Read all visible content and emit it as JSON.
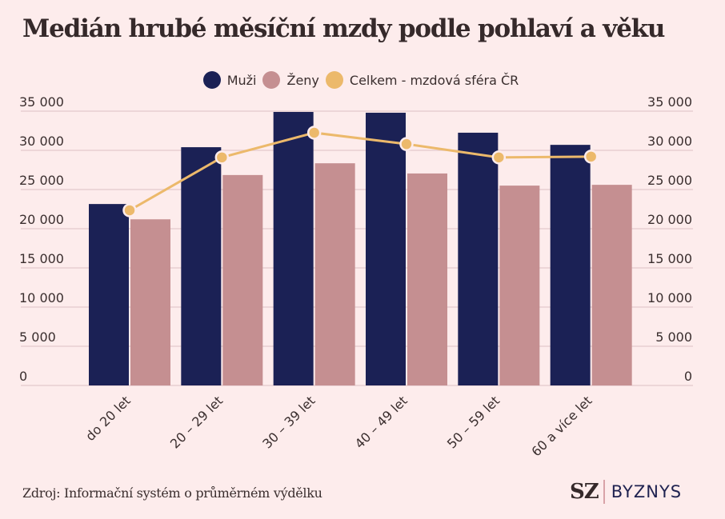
{
  "chart_data": {
    "type": "bar",
    "title": "Medián hrubé měsíční mzdy podle pohlaví a věku",
    "categories": [
      "do 20 let",
      "20 – 29 let",
      "30 – 39 let",
      "40 – 49 let",
      "50 – 59 let",
      "60 a více let"
    ],
    "series": [
      {
        "name": "Muži",
        "kind": "bar",
        "color": "#1b2155",
        "values": [
          23150,
          30400,
          34900,
          34800,
          32250,
          30700
        ]
      },
      {
        "name": "Ženy",
        "kind": "bar",
        "color": "#c58f91",
        "values": [
          21200,
          26850,
          28350,
          27050,
          25500,
          25600
        ]
      },
      {
        "name": "Celkem - mzdová sféra ČR",
        "kind": "line",
        "color": "#ecb96b",
        "values": [
          22350,
          29100,
          32250,
          30800,
          29100,
          29200
        ]
      }
    ],
    "yticks": [
      0,
      5000,
      10000,
      15000,
      20000,
      25000,
      30000,
      35000
    ],
    "ytick_labels": [
      "0",
      "5 000",
      "10 000",
      "15 000",
      "20 000",
      "25 000",
      "30 000",
      "35 000"
    ],
    "ylim": [
      0,
      35000
    ],
    "xlabel": "",
    "ylabel": "",
    "y_axis_both_sides": true,
    "grid": true,
    "legend_position": "top-center"
  },
  "source": "Zdroj: Informační systém o průměrném výdělku",
  "brand": {
    "short": "SZ",
    "section": "BYZNYS"
  }
}
